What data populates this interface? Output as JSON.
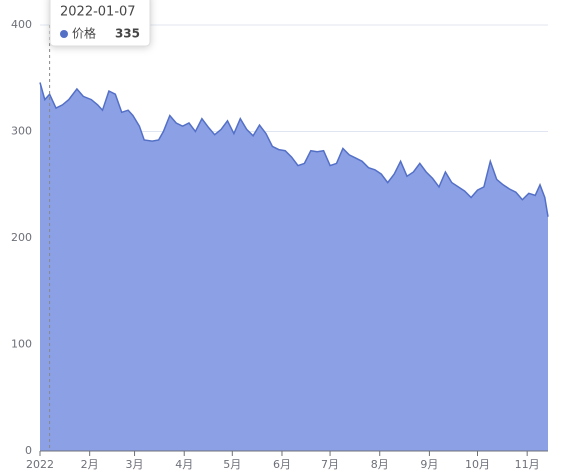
{
  "chart_data": {
    "type": "area",
    "x": [
      "2022-01-01",
      "2022-01-04",
      "2022-01-07",
      "2022-01-11",
      "2022-01-15",
      "2022-01-19",
      "2022-01-24",
      "2022-01-28",
      "2022-02-02",
      "2022-02-06",
      "2022-02-09",
      "2022-02-13",
      "2022-02-17",
      "2022-02-21",
      "2022-02-25",
      "2022-02-28",
      "2022-03-04",
      "2022-03-07",
      "2022-03-12",
      "2022-03-16",
      "2022-03-19",
      "2022-03-23",
      "2022-03-27",
      "2022-03-31",
      "2022-04-04",
      "2022-04-08",
      "2022-04-12",
      "2022-04-16",
      "2022-04-20",
      "2022-04-24",
      "2022-04-28",
      "2022-05-02",
      "2022-05-06",
      "2022-05-10",
      "2022-05-14",
      "2022-05-18",
      "2022-05-22",
      "2022-05-26",
      "2022-05-30",
      "2022-06-03",
      "2022-06-07",
      "2022-06-11",
      "2022-06-15",
      "2022-06-19",
      "2022-06-23",
      "2022-06-27",
      "2022-07-01",
      "2022-07-05",
      "2022-07-09",
      "2022-07-13",
      "2022-07-17",
      "2022-07-21",
      "2022-07-25",
      "2022-07-29",
      "2022-08-02",
      "2022-08-06",
      "2022-08-10",
      "2022-08-14",
      "2022-08-18",
      "2022-08-22",
      "2022-08-26",
      "2022-08-30",
      "2022-09-03",
      "2022-09-07",
      "2022-09-11",
      "2022-09-15",
      "2022-09-19",
      "2022-09-23",
      "2022-09-27",
      "2022-10-01",
      "2022-10-05",
      "2022-10-09",
      "2022-10-13",
      "2022-10-17",
      "2022-10-21",
      "2022-10-25",
      "2022-10-29",
      "2022-11-02",
      "2022-11-06",
      "2022-11-09",
      "2022-11-12",
      "2022-11-14"
    ],
    "series": [
      {
        "name": "价格",
        "color": "#5470c6",
        "area_color": "#8ca0e6",
        "values": [
          346,
          330,
          335,
          322,
          325,
          330,
          340,
          333,
          330,
          325,
          320,
          338,
          335,
          318,
          320,
          315,
          305,
          292,
          291,
          292,
          300,
          315,
          308,
          305,
          308,
          300,
          312,
          304,
          297,
          302,
          310,
          298,
          312,
          302,
          296,
          306,
          298,
          286,
          283,
          282,
          276,
          268,
          270,
          282,
          281,
          282,
          268,
          270,
          284,
          278,
          275,
          272,
          266,
          264,
          260,
          252,
          260,
          272,
          258,
          262,
          270,
          262,
          256,
          248,
          262,
          252,
          248,
          244,
          238,
          245,
          248,
          272,
          255,
          250,
          246,
          243,
          236,
          242,
          240,
          250,
          238,
          220
        ]
      }
    ],
    "xlim": [
      "2022-01-01",
      "2022-11-14"
    ],
    "xticks": [
      {
        "value": "2022-01-01",
        "label": "2022"
      },
      {
        "value": "2022-02-01",
        "label": "2月"
      },
      {
        "value": "2022-03-01",
        "label": "3月"
      },
      {
        "value": "2022-04-01",
        "label": "4月"
      },
      {
        "value": "2022-05-01",
        "label": "5月"
      },
      {
        "value": "2022-06-01",
        "label": "6月"
      },
      {
        "value": "2022-07-01",
        "label": "7月"
      },
      {
        "value": "2022-08-01",
        "label": "8月"
      },
      {
        "value": "2022-09-01",
        "label": "9月"
      },
      {
        "value": "2022-10-01",
        "label": "10月"
      },
      {
        "value": "2022-11-01",
        "label": "11月"
      }
    ],
    "ylim": [
      0,
      400
    ],
    "yticks": [
      0,
      100,
      200,
      300,
      400
    ],
    "grid": true,
    "tooltip_index": 2
  }
}
